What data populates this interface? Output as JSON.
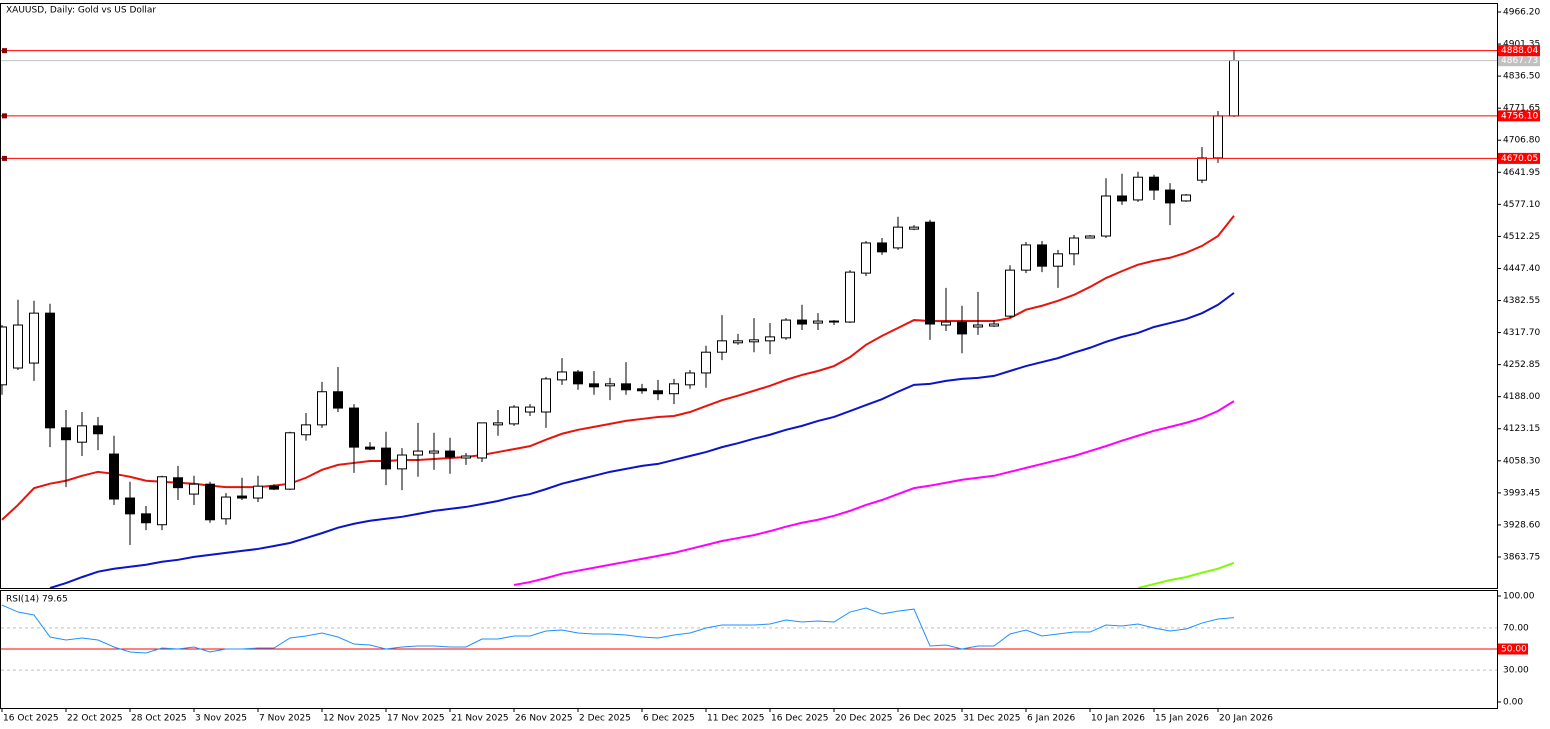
{
  "chart_data": [
    {
      "type": "candlestick",
      "title": "XAUUSD, Daily:  Gold vs US Dollar",
      "categories": [
        "16 Oct 2025",
        null,
        null,
        null,
        "22 Oct 2025",
        null,
        null,
        null,
        "28 Oct 2025",
        null,
        null,
        null,
        "3 Nov 2025",
        null,
        null,
        null,
        "7 Nov 2025",
        null,
        null,
        null,
        "12 Nov 2025",
        null,
        null,
        null,
        "17 Nov 2025",
        null,
        null,
        null,
        "21 Nov 2025",
        null,
        null,
        null,
        "26 Nov 2025",
        null,
        null,
        null,
        "2 Dec 2025",
        null,
        null,
        null,
        "6 Dec 2025",
        null,
        null,
        null,
        "11 Dec 2025",
        null,
        null,
        null,
        "16 Dec 2025",
        null,
        null,
        null,
        "20 Dec 2025",
        null,
        null,
        null,
        "26 Dec 2025",
        null,
        null,
        null,
        "31 Dec 2025",
        null,
        null,
        null,
        "6 Jan 2026",
        null,
        null,
        null,
        "10 Jan 2026",
        null,
        null,
        null,
        "15 Jan 2026",
        null,
        null,
        null,
        "20 Jan 2026",
        null
      ],
      "open": [
        4212,
        4246,
        4256,
        4357,
        4125,
        4096,
        4129,
        4072,
        3983,
        3951,
        3929,
        4024,
        3991,
        4011,
        3941,
        3987,
        3983,
        4007,
        4001,
        4111,
        4131,
        4198,
        4165,
        4086,
        4084,
        4042,
        4070,
        4074,
        4078,
        4064,
        4064,
        4131,
        4133,
        4157,
        4157,
        4222,
        4238,
        4214,
        4210,
        4214,
        4204,
        4200,
        4194,
        4212,
        4236,
        4278,
        4297,
        4299,
        4301,
        4307,
        4343,
        4337,
        4339,
        4339,
        4438,
        4499,
        4489,
        4527,
        4541,
        4333,
        4339,
        4329,
        4331,
        4351,
        4444,
        4495,
        4452,
        4477,
        4509,
        4513,
        4594,
        4586,
        4632,
        4606,
        4584,
        4626,
        4671,
        4756
      ],
      "high": [
        4333,
        4384,
        4382,
        4376,
        4161,
        4157,
        4147,
        4109,
        4016,
        3967,
        4028,
        4048,
        4028,
        4016,
        3993,
        4024,
        4028,
        4011,
        4117,
        4155,
        4218,
        4248,
        4173,
        4096,
        4117,
        4084,
        4135,
        4115,
        4105,
        4074,
        4135,
        4161,
        4171,
        4173,
        4228,
        4266,
        4242,
        4240,
        4226,
        4258,
        4214,
        4222,
        4224,
        4242,
        4291,
        4353,
        4315,
        4347,
        4337,
        4347,
        4374,
        4357,
        4343,
        4444,
        4503,
        4509,
        4552,
        4535,
        4546,
        4408,
        4372,
        4400,
        4343,
        4454,
        4501,
        4503,
        4485,
        4515,
        4515,
        4630,
        4639,
        4643,
        4637,
        4620,
        4598,
        4693,
        4766,
        4889
      ],
      "low": [
        4192,
        4242,
        4220,
        4086,
        4005,
        4068,
        4080,
        3969,
        3888,
        3918,
        3918,
        3979,
        3969,
        3933,
        3929,
        3979,
        3975,
        3999,
        3999,
        4099,
        4125,
        4157,
        4034,
        4080,
        4009,
        3999,
        4026,
        4040,
        4032,
        4050,
        4056,
        4109,
        4129,
        4149,
        4125,
        4212,
        4202,
        4192,
        4181,
        4192,
        4194,
        4181,
        4173,
        4204,
        4206,
        4262,
        4293,
        4278,
        4274,
        4303,
        4323,
        4323,
        4333,
        4337,
        4432,
        4475,
        4485,
        4525,
        4303,
        4321,
        4276,
        4313,
        4329,
        4347,
        4438,
        4440,
        4408,
        4454,
        4509,
        4509,
        4576,
        4582,
        4586,
        4535,
        4582,
        4620,
        4661,
        4754
      ],
      "close": [
        4329,
        4333,
        4357,
        4125,
        4101,
        4129,
        4113,
        3981,
        3951,
        3933,
        4026,
        4004,
        4011,
        3939,
        3985,
        3983,
        4007,
        4001,
        4115,
        4131,
        4198,
        4165,
        4086,
        4082,
        4042,
        4070,
        4078,
        4078,
        4066,
        4068,
        4135,
        4135,
        4167,
        4167,
        4224,
        4238,
        4214,
        4208,
        4214,
        4202,
        4200,
        4194,
        4214,
        4236,
        4278,
        4301,
        4301,
        4303,
        4309,
        4343,
        4335,
        4341,
        4341,
        4440,
        4499,
        4481,
        4531,
        4531,
        4335,
        4339,
        4315,
        4333,
        4335,
        4444,
        4495,
        4452,
        4477,
        4509,
        4513,
        4594,
        4584,
        4632,
        4606,
        4580,
        4596,
        4671,
        4756,
        4868
      ],
      "up_color": "#ffffff",
      "down_color": "#000000",
      "lines": [
        {
          "color": "#e8140c",
          "values": [
            3939,
            3969,
            4003,
            4012,
            4018,
            4028,
            4036,
            4032,
            4026,
            4018,
            4016,
            4014,
            4012,
            4008,
            4005,
            4005,
            4005,
            4008,
            4012,
            4024,
            4040,
            4050,
            4054,
            4058,
            4058,
            4060,
            4060,
            4062,
            4064,
            4066,
            4070,
            4076,
            4082,
            4088,
            4101,
            4113,
            4121,
            4127,
            4133,
            4139,
            4143,
            4147,
            4149,
            4157,
            4169,
            4181,
            4190,
            4200,
            4210,
            4222,
            4232,
            4240,
            4250,
            4268,
            4293,
            4311,
            4327,
            4343,
            4341,
            4341,
            4341,
            4341,
            4341,
            4347,
            4364,
            4372,
            4382,
            4394,
            4410,
            4428,
            4442,
            4455,
            4463,
            4469,
            4479,
            4493,
            4513,
            4554
          ]
        },
        {
          "color": "#0a14c8",
          "values": [
            null,
            null,
            null,
            3801,
            3811,
            3823,
            3834,
            3840,
            3844,
            3848,
            3854,
            3858,
            3864,
            3868,
            3872,
            3876,
            3880,
            3886,
            3892,
            3902,
            3912,
            3923,
            3931,
            3937,
            3941,
            3945,
            3951,
            3957,
            3961,
            3965,
            3971,
            3977,
            3985,
            3991,
            4001,
            4012,
            4020,
            4028,
            4036,
            4042,
            4048,
            4052,
            4060,
            4068,
            4076,
            4086,
            4094,
            4103,
            4111,
            4121,
            4129,
            4139,
            4147,
            4159,
            4171,
            4183,
            4198,
            4212,
            4214,
            4220,
            4224,
            4226,
            4230,
            4240,
            4250,
            4258,
            4266,
            4277,
            4287,
            4299,
            4309,
            4317,
            4329,
            4337,
            4345,
            4357,
            4374,
            4398
          ]
        },
        {
          "color": "#ff00ff",
          "values": [
            null,
            null,
            null,
            null,
            null,
            null,
            null,
            null,
            null,
            null,
            null,
            null,
            null,
            null,
            null,
            null,
            null,
            null,
            null,
            null,
            null,
            null,
            null,
            null,
            null,
            null,
            null,
            null,
            null,
            null,
            null,
            null,
            3807,
            3813,
            3821,
            3830,
            3836,
            3842,
            3848,
            3854,
            3860,
            3866,
            3872,
            3880,
            3888,
            3896,
            3902,
            3908,
            3916,
            3925,
            3933,
            3939,
            3947,
            3957,
            3969,
            3979,
            3991,
            4003,
            4008,
            4014,
            4020,
            4024,
            4028,
            4036,
            4044,
            4052,
            4060,
            4068,
            4078,
            4088,
            4099,
            4109,
            4119,
            4127,
            4135,
            4145,
            4159,
            4179
          ]
        },
        {
          "color": "#7cfc00",
          "values": [
            null,
            null,
            null,
            null,
            null,
            null,
            null,
            null,
            null,
            null,
            null,
            null,
            null,
            null,
            null,
            null,
            null,
            null,
            null,
            null,
            null,
            null,
            null,
            null,
            null,
            null,
            null,
            null,
            null,
            null,
            null,
            null,
            null,
            null,
            null,
            null,
            null,
            null,
            null,
            null,
            null,
            null,
            null,
            null,
            null,
            null,
            null,
            null,
            null,
            null,
            null,
            null,
            null,
            null,
            null,
            null,
            null,
            null,
            null,
            null,
            null,
            null,
            null,
            null,
            null,
            null,
            null,
            null,
            null,
            null,
            null,
            3801,
            3809,
            3817,
            3823,
            3832,
            3840,
            3852
          ]
        }
      ],
      "levels": [
        4888.04,
        {
          "value": 4756.1,
          "label": "4756.10"
        },
        4670.05
      ],
      "level_color": "#ff0000",
      "current_price": 4867.73,
      "ylim": [
        3801,
        4984.4
      ],
      "yticks": [
        {
          "value": 4966.2,
          "label": "4966.20"
        },
        4901.35,
        {
          "value": 4836.5,
          "label": "4836.50"
        },
        4771.65,
        {
          "value": 4706.8,
          "label": "4706.80"
        },
        4641.95,
        {
          "value": 4577.1,
          "label": "4577.10"
        },
        4512.25,
        {
          "value": 4447.4,
          "label": "4447.40"
        },
        4382.55,
        {
          "value": 4317.7,
          "label": "4317.70"
        },
        4252.85,
        {
          "value": 4188,
          "label": "4188.00"
        },
        4123.15,
        {
          "value": 4058.3,
          "label": "4058.30"
        },
        3993.45,
        {
          "value": 3928.6,
          "label": "3928.60"
        },
        3863.75
      ]
    },
    {
      "type": "line",
      "title": "RSI(14) 79.65",
      "color": "#1e90ff",
      "values": [
        91.5,
        84.9,
        82.1,
        61.3,
        58.5,
        60.4,
        58.5,
        51.9,
        47.2,
        46.2,
        50.9,
        50,
        51.9,
        47.2,
        50,
        50,
        50.9,
        50.9,
        60.4,
        62.3,
        65.1,
        61.3,
        54.7,
        53.8,
        50,
        51.9,
        52.8,
        52.8,
        51.9,
        51.9,
        59.4,
        59.4,
        62.3,
        62.3,
        67,
        67.9,
        65.1,
        64.2,
        64.2,
        63.2,
        61.3,
        60.4,
        63.2,
        65.1,
        69.8,
        72.6,
        72.6,
        72.6,
        73.6,
        77.4,
        75.5,
        76.4,
        75.5,
        84.9,
        88.7,
        83,
        85.8,
        87.7,
        52.8,
        53.8,
        50,
        52.8,
        52.8,
        64.2,
        67.9,
        62.3,
        64.2,
        66,
        66,
        72.6,
        71.7,
        73.6,
        69.8,
        67,
        68.9,
        74.5,
        78.3,
        79.65
      ],
      "levels": [
        {
          "value": 70,
          "label": "70.00",
          "style": "dashed",
          "color": "#c0c0c0"
        },
        {
          "value": 50,
          "label": "50.00",
          "style": "solid",
          "color": "#ff0000"
        },
        {
          "value": 30,
          "label": "30.00",
          "style": "dashed",
          "color": "#c0c0c0"
        }
      ],
      "ylim": [
        -5.7,
        105.7
      ],
      "yticks": [
        {
          "value": 100,
          "label": "100.00"
        },
        {
          "value": 0,
          "label": "0.00"
        }
      ]
    }
  ]
}
